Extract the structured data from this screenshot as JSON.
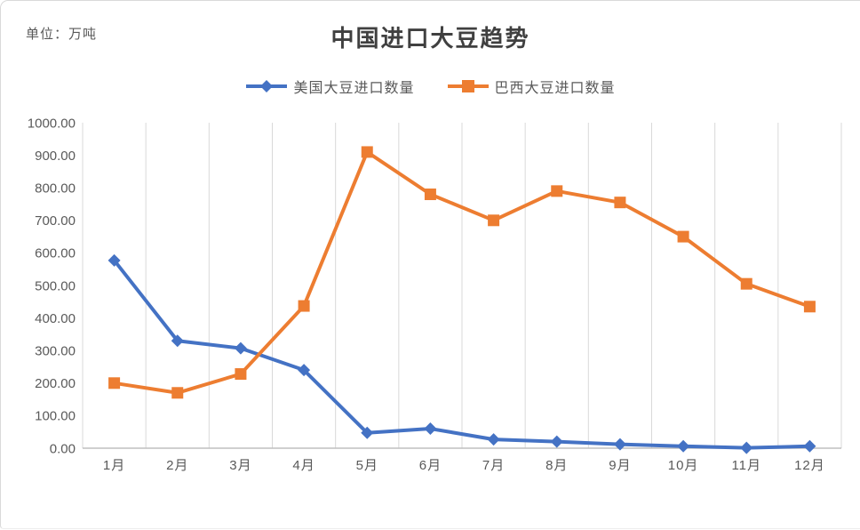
{
  "unit_label": "单位：万吨",
  "chart_data": {
    "type": "line",
    "title": "中国进口大豆趋势",
    "unit": "万吨",
    "categories": [
      "1月",
      "2月",
      "3月",
      "4月",
      "5月",
      "6月",
      "7月",
      "8月",
      "9月",
      "10月",
      "11月",
      "12月"
    ],
    "series": [
      {
        "name": "美国大豆进口数量",
        "color": "#4472C4",
        "marker": "diamond",
        "values": [
          577,
          330,
          307,
          240,
          47,
          60,
          27,
          20,
          12,
          6,
          1,
          6
        ]
      },
      {
        "name": "巴西大豆进口数量",
        "color": "#ED7D31",
        "marker": "square",
        "values": [
          200,
          170,
          228,
          437,
          910,
          780,
          700,
          790,
          755,
          650,
          505,
          435
        ]
      }
    ],
    "ylim": [
      0,
      1000
    ],
    "y_tick_step": 100,
    "y_tick_labels": [
      "0.00",
      "100.00",
      "200.00",
      "300.00",
      "400.00",
      "500.00",
      "600.00",
      "700.00",
      "800.00",
      "900.00",
      "1000.00"
    ],
    "grid": "vertical-only",
    "legend_position": "top",
    "axis_color": "#bfbfbf",
    "gridline_color": "#d9d9d9"
  }
}
